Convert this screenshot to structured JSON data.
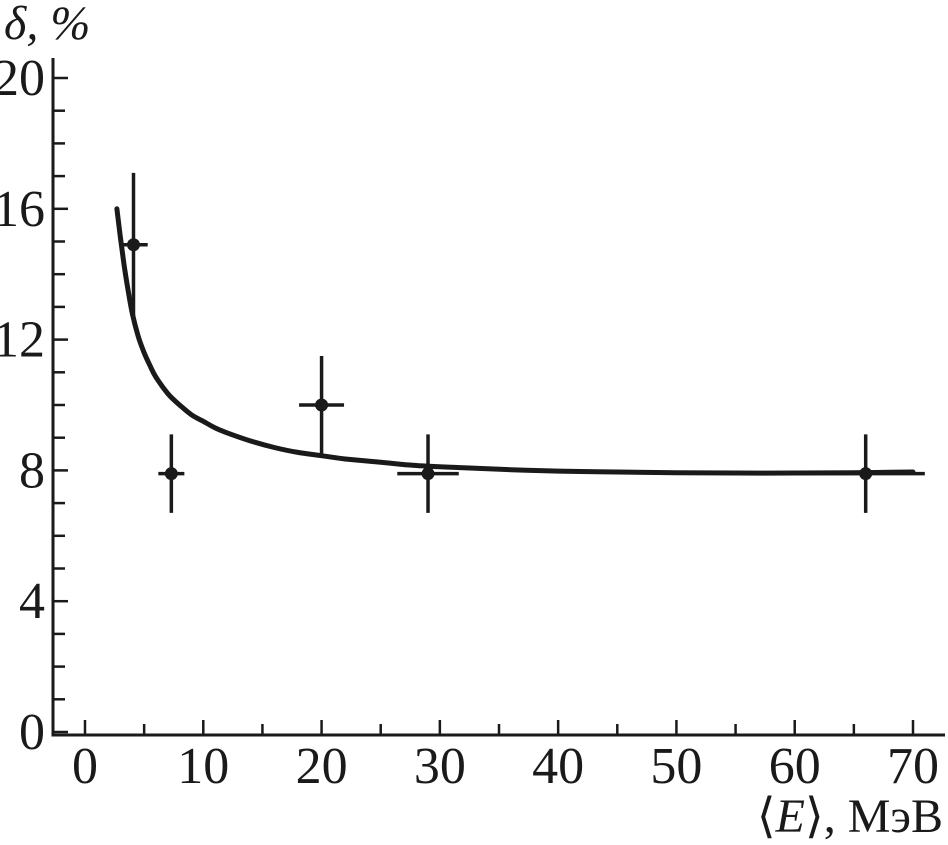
{
  "figure": {
    "background": "#ffffff",
    "ink_color": "#1a1a1a"
  },
  "axes": {
    "y_title": {
      "symbol": "δ",
      "separator": ", ",
      "unit": "%",
      "full": "δ, %"
    },
    "x_title": {
      "open_bracket": "⟨",
      "symbol": "E",
      "close_bracket": "⟩",
      "separator": ", ",
      "unit": "МэВ",
      "full": "⟨E⟩, МэВ"
    }
  },
  "chart_data": {
    "type": "scatter",
    "title": "",
    "xlabel": "⟨E⟩, МэВ",
    "ylabel": "δ, %",
    "xlim": [
      0,
      70
    ],
    "ylim": [
      0,
      20
    ],
    "grid": false,
    "legend": null,
    "x_ticks_major": [
      0,
      10,
      20,
      30,
      40,
      50,
      60,
      70
    ],
    "x_ticks_minor": [
      5,
      15,
      25,
      35,
      45,
      55,
      65
    ],
    "y_ticks_major": [
      0,
      4,
      8,
      12,
      16,
      20
    ],
    "y_ticks_minor": [
      1,
      2,
      3,
      5,
      6,
      7,
      9,
      10,
      11,
      13,
      14,
      15,
      17,
      18,
      19
    ],
    "series": [
      {
        "name": "measured-points",
        "type": "scatter-errorbars",
        "marker": "filled-circle",
        "color": "#1a1a1a",
        "points": [
          {
            "x": 4.1,
            "y": 14.9,
            "xerr": 1.2,
            "yerr": 2.2
          },
          {
            "x": 7.3,
            "y": 7.9,
            "xerr": 1.1,
            "yerr": 1.2
          },
          {
            "x": 20.0,
            "y": 10.0,
            "xerr": 1.9,
            "yerr": 1.5
          },
          {
            "x": 29.0,
            "y": 7.9,
            "xerr": 2.6,
            "yerr": 1.2
          },
          {
            "x": 66.0,
            "y": 7.9,
            "xerr_lo": 6.6,
            "xerr_hi": 5.0,
            "yerr": 1.2
          }
        ]
      },
      {
        "name": "fit-curve",
        "type": "line",
        "color": "#1a1a1a",
        "x": [
          2.7,
          3.0,
          3.3,
          3.6,
          4.0,
          4.5,
          5.0,
          5.5,
          6.0,
          7.0,
          8.0,
          9.0,
          10.0,
          11.0,
          12.0,
          14.0,
          16.0,
          18.0,
          20.0,
          22.0,
          25.0,
          28.0,
          32.0,
          36.0,
          40.0,
          45.0,
          50.0,
          55.0,
          60.0,
          65.0,
          70.0
        ],
        "y": [
          16.0,
          15.1,
          14.3,
          13.6,
          12.8,
          12.1,
          11.6,
          11.2,
          10.85,
          10.35,
          10.0,
          9.7,
          9.5,
          9.3,
          9.15,
          8.9,
          8.7,
          8.55,
          8.45,
          8.35,
          8.25,
          8.15,
          8.08,
          8.02,
          7.98,
          7.95,
          7.93,
          7.92,
          7.92,
          7.93,
          7.95
        ]
      }
    ]
  }
}
